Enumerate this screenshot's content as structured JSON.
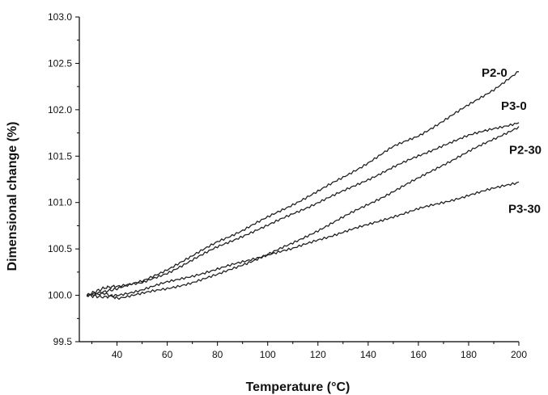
{
  "chart_data": {
    "type": "line",
    "title": "",
    "xlabel": "Temperature (°C)",
    "ylabel": "Dimensional change (%)",
    "xlim": [
      25,
      200
    ],
    "ylim": [
      99.5,
      103.0
    ],
    "x_ticks": [
      "40",
      "60",
      "80",
      "100",
      "120",
      "140",
      "160",
      "180",
      "200"
    ],
    "y_ticks": [
      "99.5",
      "100.0",
      "100.5",
      "101.0",
      "101.5",
      "102.0",
      "102.5",
      "103.0"
    ],
    "grid": false,
    "series": [
      {
        "name": "P2-0",
        "x": [
          28,
          35,
          40,
          50,
          60,
          70,
          80,
          90,
          100,
          110,
          120,
          130,
          140,
          150,
          160,
          170,
          180,
          190,
          200
        ],
        "y": [
          100.0,
          100.04,
          100.07,
          100.15,
          100.28,
          100.42,
          100.58,
          100.7,
          100.84,
          100.98,
          101.12,
          101.27,
          101.43,
          101.6,
          101.72,
          101.88,
          102.05,
          102.22,
          102.41
        ]
      },
      {
        "name": "P3-0",
        "x": [
          28,
          35,
          40,
          50,
          60,
          70,
          80,
          90,
          100,
          110,
          120,
          130,
          140,
          150,
          160,
          170,
          180,
          190,
          200
        ],
        "y": [
          100.0,
          100.08,
          100.1,
          100.13,
          100.24,
          100.38,
          100.52,
          100.64,
          100.75,
          100.88,
          101.0,
          101.12,
          101.25,
          101.38,
          101.5,
          101.62,
          101.72,
          101.8,
          101.86
        ]
      },
      {
        "name": "P2-30",
        "x": [
          28,
          35,
          40,
          50,
          60,
          70,
          80,
          90,
          100,
          110,
          120,
          130,
          140,
          150,
          160,
          170,
          180,
          190,
          200
        ],
        "y": [
          100.0,
          100.02,
          99.97,
          100.02,
          100.07,
          100.14,
          100.22,
          100.33,
          100.44,
          100.56,
          100.7,
          100.84,
          100.98,
          101.12,
          101.26,
          101.41,
          101.55,
          101.68,
          101.82
        ]
      },
      {
        "name": "P3-30",
        "x": [
          28,
          35,
          40,
          50,
          60,
          70,
          80,
          90,
          100,
          110,
          120,
          130,
          140,
          150,
          160,
          170,
          180,
          190,
          200
        ],
        "y": [
          100.0,
          99.98,
          100.0,
          100.06,
          100.14,
          100.21,
          100.28,
          100.36,
          100.44,
          100.5,
          100.6,
          100.68,
          100.76,
          100.85,
          100.93,
          101.0,
          101.08,
          101.15,
          101.22
        ]
      }
    ]
  }
}
